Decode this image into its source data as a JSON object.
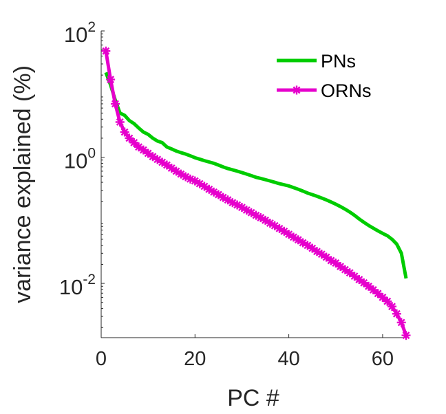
{
  "chart_data": {
    "type": "line",
    "title": "",
    "xlabel": "PC #",
    "ylabel": "variance explained (%)",
    "xlim": [
      0,
      65
    ],
    "ylim": [
      0.00138,
      100
    ],
    "yscale": "log",
    "grid": false,
    "legend_position": "top-right",
    "x_ticks": [
      {
        "value": 0,
        "label": "0"
      },
      {
        "value": 20,
        "label": "20"
      },
      {
        "value": 40,
        "label": "40"
      },
      {
        "value": 60,
        "label": "60"
      }
    ],
    "y_ticks": [
      {
        "value": 100,
        "base": "10",
        "exp": "2"
      },
      {
        "value": 1,
        "base": "10",
        "exp": "0"
      },
      {
        "value": 0.01,
        "base": "10",
        "exp": "-2"
      }
    ],
    "series": [
      {
        "name": "PNs",
        "color": "#00cc00",
        "marker": "none",
        "x": [
          1,
          2,
          3,
          4,
          5,
          6,
          7,
          8,
          9,
          10,
          11,
          12,
          13,
          14,
          15,
          16,
          17,
          18,
          19,
          20,
          21,
          22,
          23,
          24,
          25,
          26,
          27,
          28,
          29,
          30,
          31,
          32,
          33,
          34,
          35,
          36,
          37,
          38,
          39,
          40,
          41,
          42,
          43,
          44,
          45,
          46,
          47,
          48,
          49,
          50,
          51,
          52,
          53,
          54,
          55,
          56,
          57,
          58,
          59,
          60,
          61,
          62,
          63,
          64,
          65
        ],
        "values": [
          22,
          14,
          8,
          5,
          4.6,
          3.8,
          3.4,
          2.9,
          2.5,
          2.3,
          2.0,
          1.8,
          1.7,
          1.45,
          1.35,
          1.25,
          1.18,
          1.12,
          1.05,
          0.98,
          0.93,
          0.88,
          0.84,
          0.8,
          0.75,
          0.7,
          0.66,
          0.63,
          0.6,
          0.57,
          0.54,
          0.51,
          0.48,
          0.46,
          0.44,
          0.42,
          0.4,
          0.38,
          0.365,
          0.35,
          0.33,
          0.31,
          0.29,
          0.27,
          0.255,
          0.24,
          0.225,
          0.21,
          0.195,
          0.18,
          0.165,
          0.15,
          0.135,
          0.12,
          0.105,
          0.093,
          0.083,
          0.075,
          0.068,
          0.062,
          0.057,
          0.05,
          0.042,
          0.03,
          0.012
        ]
      },
      {
        "name": "ORNs",
        "color": "#e600cc",
        "marker": "asterisk",
        "x": [
          1,
          2,
          3,
          4,
          5,
          6,
          7,
          8,
          9,
          10,
          11,
          12,
          13,
          14,
          15,
          16,
          17,
          18,
          19,
          20,
          21,
          22,
          23,
          24,
          25,
          26,
          27,
          28,
          29,
          30,
          31,
          32,
          33,
          34,
          35,
          36,
          37,
          38,
          39,
          40,
          41,
          42,
          43,
          44,
          45,
          46,
          47,
          48,
          49,
          50,
          51,
          52,
          53,
          54,
          55,
          56,
          57,
          58,
          59,
          60,
          61,
          62,
          63,
          64,
          65
        ],
        "values": [
          48,
          17,
          7,
          3.6,
          2.5,
          2.0,
          1.7,
          1.45,
          1.3,
          1.15,
          1.02,
          0.92,
          0.83,
          0.75,
          0.67,
          0.6,
          0.54,
          0.49,
          0.45,
          0.42,
          0.38,
          0.345,
          0.31,
          0.28,
          0.255,
          0.23,
          0.21,
          0.19,
          0.175,
          0.16,
          0.145,
          0.132,
          0.12,
          0.11,
          0.1,
          0.09,
          0.082,
          0.074,
          0.067,
          0.06,
          0.054,
          0.049,
          0.044,
          0.04,
          0.036,
          0.032,
          0.029,
          0.026,
          0.023,
          0.021,
          0.0185,
          0.0165,
          0.0147,
          0.013,
          0.0115,
          0.0102,
          0.009,
          0.0079,
          0.0069,
          0.006,
          0.0052,
          0.0043,
          0.0033,
          0.0024,
          0.0015
        ]
      }
    ]
  }
}
